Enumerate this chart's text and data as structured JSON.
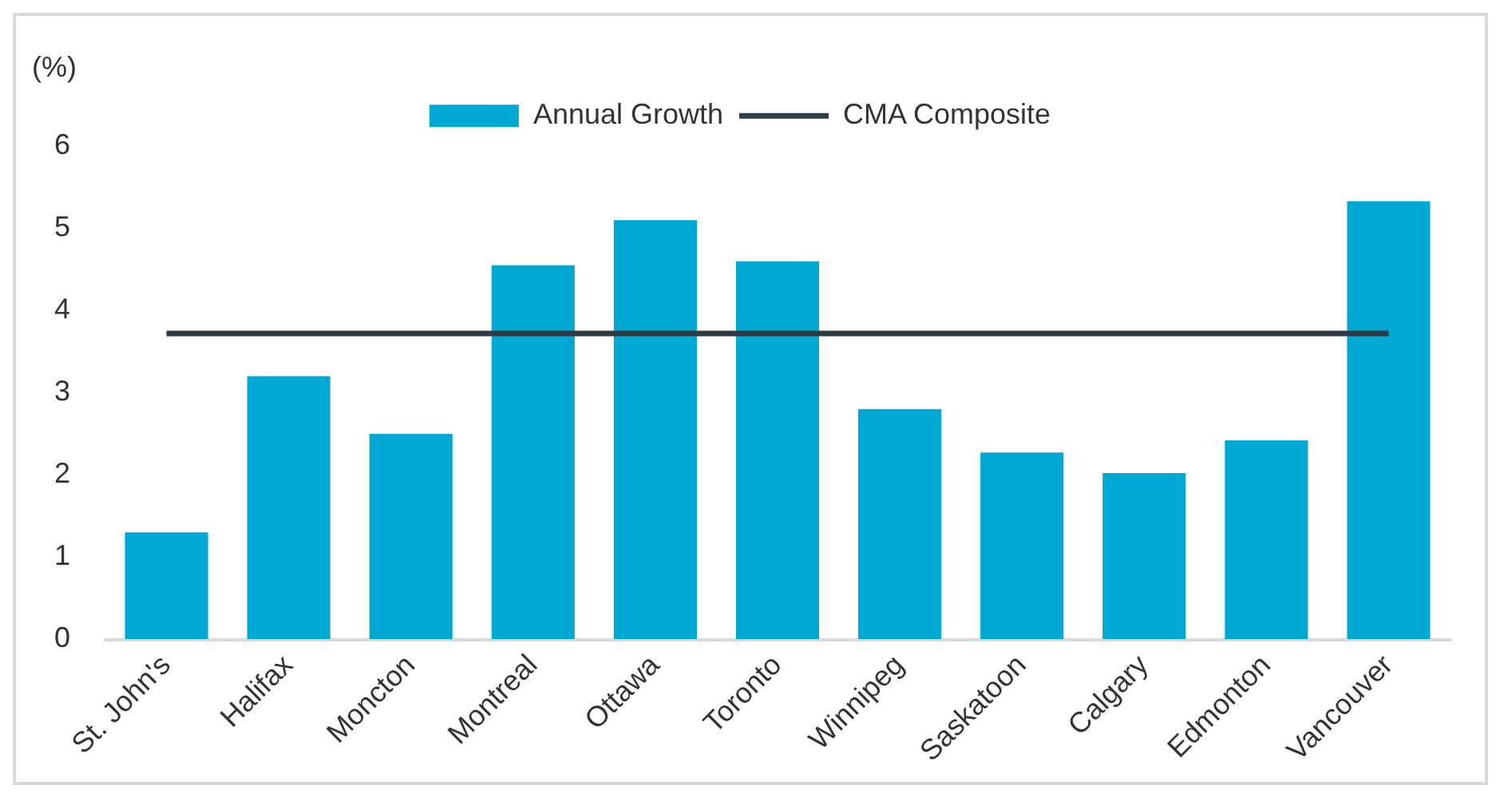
{
  "chart_data": {
    "type": "bar",
    "ylabel": "(%)",
    "categories": [
      "St. John's",
      "Halifax",
      "Moncton",
      "Montreal",
      "Ottawa",
      "Toronto",
      "Winnipeg",
      "Saskatoon",
      "Calgary",
      "Edmonton",
      "Vancouver"
    ],
    "series": [
      {
        "name": "Annual Growth",
        "color": "#00a9d4",
        "values": [
          1.3,
          3.2,
          2.5,
          4.55,
          5.1,
          4.6,
          2.8,
          2.27,
          2.02,
          2.42,
          5.33
        ]
      },
      {
        "name": "CMA Composite",
        "type": "line",
        "color": "#2e3b44",
        "values": [
          3.72,
          3.72,
          3.72,
          3.72,
          3.72,
          3.72,
          3.72,
          3.72,
          3.72,
          3.72,
          3.72
        ]
      }
    ],
    "ylim": [
      0,
      6
    ],
    "yticks": [
      0,
      1,
      2,
      3,
      4,
      5,
      6
    ],
    "grid": false,
    "legend": "top",
    "marker": "none"
  }
}
